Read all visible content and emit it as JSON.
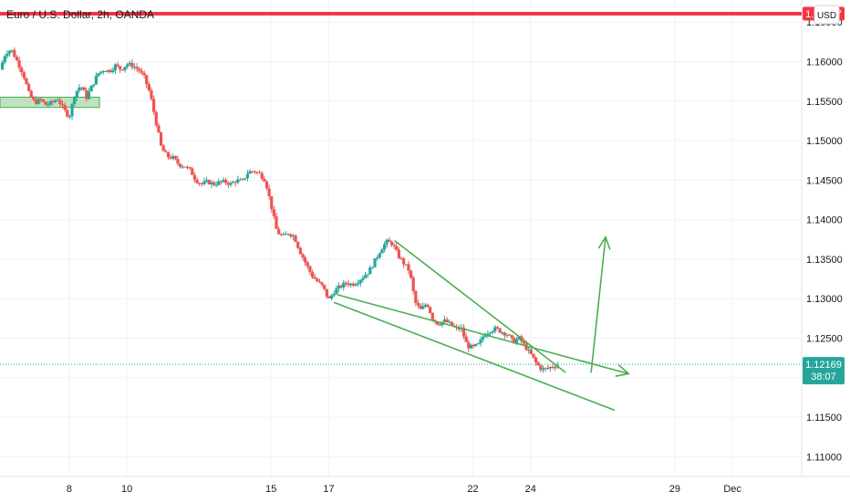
{
  "header": {
    "title": "Euro / U.S. Dollar, 2h, OANDA",
    "currency_button": "USD"
  },
  "price_tags": {
    "resistance": "1.16607",
    "current_price": "1.12169",
    "countdown": "38:07"
  },
  "colors": {
    "up": "#26a69a",
    "down": "#ef5350",
    "resistance": "#f23645",
    "drawing": "#4caf50",
    "zone_fill": "#a5d6a7",
    "current_tag": "#26a69a"
  },
  "chart_data": {
    "type": "candlestick",
    "title": "Euro / U.S. Dollar, 2h, OANDA",
    "symbol": "EURUSD",
    "interval": "2h",
    "y_ticks": [
      "1.16500",
      "1.16000",
      "1.15500",
      "1.15000",
      "1.14500",
      "1.14000",
      "1.13500",
      "1.13000",
      "1.12500",
      "1.12000",
      "1.11500",
      "1.11000"
    ],
    "ylim": [
      1.1075,
      1.1678
    ],
    "x_ticks": [
      {
        "label": "8",
        "day": 8
      },
      {
        "label": "10",
        "day": 10
      },
      {
        "label": "15",
        "day": 15
      },
      {
        "label": "17",
        "day": 17
      },
      {
        "label": "22",
        "day": 22
      },
      {
        "label": "24",
        "day": 24
      },
      {
        "label": "29",
        "day": 29
      },
      {
        "label": "Dec",
        "day": 31
      }
    ],
    "xlim_day": [
      5.6,
      33.4
    ],
    "grid": true,
    "price_path": [
      [
        5.6,
        1.159
      ],
      [
        5.8,
        1.1612
      ],
      [
        6.0,
        1.1615
      ],
      [
        6.2,
        1.16
      ],
      [
        6.4,
        1.1585
      ],
      [
        6.6,
        1.156
      ],
      [
        6.8,
        1.1548
      ],
      [
        7.0,
        1.1552
      ],
      [
        7.2,
        1.1545
      ],
      [
        7.4,
        1.1548
      ],
      [
        7.6,
        1.1553
      ],
      [
        7.8,
        1.154
      ],
      [
        8.0,
        1.153
      ],
      [
        8.2,
        1.156
      ],
      [
        8.4,
        1.157
      ],
      [
        8.6,
        1.1555
      ],
      [
        8.8,
        1.157
      ],
      [
        9.0,
        1.1585
      ],
      [
        9.2,
        1.159
      ],
      [
        9.4,
        1.1588
      ],
      [
        9.6,
        1.1595
      ],
      [
        9.8,
        1.159
      ],
      [
        10.0,
        1.1597
      ],
      [
        10.2,
        1.1595
      ],
      [
        10.4,
        1.159
      ],
      [
        10.6,
        1.158
      ],
      [
        10.8,
        1.156
      ],
      [
        11.0,
        1.1525
      ],
      [
        11.2,
        1.149
      ],
      [
        11.4,
        1.148
      ],
      [
        11.6,
        1.1478
      ],
      [
        11.8,
        1.147
      ],
      [
        12.0,
        1.1468
      ],
      [
        12.2,
        1.1462
      ],
      [
        12.4,
        1.145
      ],
      [
        12.6,
        1.1445
      ],
      [
        12.8,
        1.1448
      ],
      [
        13.0,
        1.1445
      ],
      [
        13.2,
        1.1447
      ],
      [
        13.4,
        1.1448
      ],
      [
        13.6,
        1.1445
      ],
      [
        13.8,
        1.145
      ],
      [
        14.0,
        1.1448
      ],
      [
        14.2,
        1.146
      ],
      [
        14.4,
        1.1462
      ],
      [
        14.6,
        1.1458
      ],
      [
        14.8,
        1.145
      ],
      [
        15.0,
        1.1418
      ],
      [
        15.2,
        1.1385
      ],
      [
        15.4,
        1.1378
      ],
      [
        15.6,
        1.1383
      ],
      [
        15.8,
        1.1379
      ],
      [
        16.0,
        1.136
      ],
      [
        16.2,
        1.1345
      ],
      [
        16.4,
        1.133
      ],
      [
        16.6,
        1.1322
      ],
      [
        16.8,
        1.1315
      ],
      [
        17.0,
        1.1298
      ],
      [
        17.2,
        1.131
      ],
      [
        17.4,
        1.1315
      ],
      [
        17.6,
        1.132
      ],
      [
        17.8,
        1.1318
      ],
      [
        18.0,
        1.1322
      ],
      [
        18.2,
        1.1328
      ],
      [
        18.4,
        1.1335
      ],
      [
        18.6,
        1.1348
      ],
      [
        18.8,
        1.1362
      ],
      [
        19.0,
        1.1372
      ],
      [
        19.2,
        1.137
      ],
      [
        19.4,
        1.1355
      ],
      [
        19.6,
        1.1345
      ],
      [
        19.8,
        1.1335
      ],
      [
        20.0,
        1.1295
      ],
      [
        20.2,
        1.1285
      ],
      [
        20.4,
        1.1295
      ],
      [
        20.6,
        1.1275
      ],
      [
        20.8,
        1.1268
      ],
      [
        21.0,
        1.1272
      ],
      [
        21.2,
        1.1268
      ],
      [
        21.4,
        1.1262
      ],
      [
        21.6,
        1.1262
      ],
      [
        21.8,
        1.124
      ],
      [
        22.0,
        1.1238
      ],
      [
        22.2,
        1.1242
      ],
      [
        22.4,
        1.1255
      ],
      [
        22.6,
        1.126
      ],
      [
        22.8,
        1.1262
      ],
      [
        23.0,
        1.1258
      ],
      [
        23.2,
        1.1255
      ],
      [
        23.4,
        1.1245
      ],
      [
        23.6,
        1.125
      ],
      [
        23.8,
        1.124
      ],
      [
        24.0,
        1.123
      ],
      [
        24.2,
        1.1218
      ],
      [
        24.4,
        1.121
      ],
      [
        24.6,
        1.1212
      ],
      [
        24.8,
        1.1215
      ],
      [
        25.0,
        1.1217
      ]
    ],
    "annotations": {
      "resistance_level": 1.16607,
      "current_price": 1.12169,
      "support_zone": {
        "day_start": 5.6,
        "day_end": 9.05,
        "price_low": 1.1542,
        "price_high": 1.1555
      },
      "wedge_upper": [
        [
          19.3,
          1.1373
        ],
        [
          25.2,
          1.1207
        ]
      ],
      "wedge_lower": [
        [
          17.2,
          1.1295
        ],
        [
          26.9,
          1.1159
        ]
      ],
      "breakdown_arrow": [
        [
          17.3,
          1.1305
        ],
        [
          27.4,
          1.1205
        ]
      ],
      "breakout_arrow": [
        [
          26.1,
          1.1207
        ],
        [
          26.6,
          1.1378
        ]
      ]
    }
  }
}
